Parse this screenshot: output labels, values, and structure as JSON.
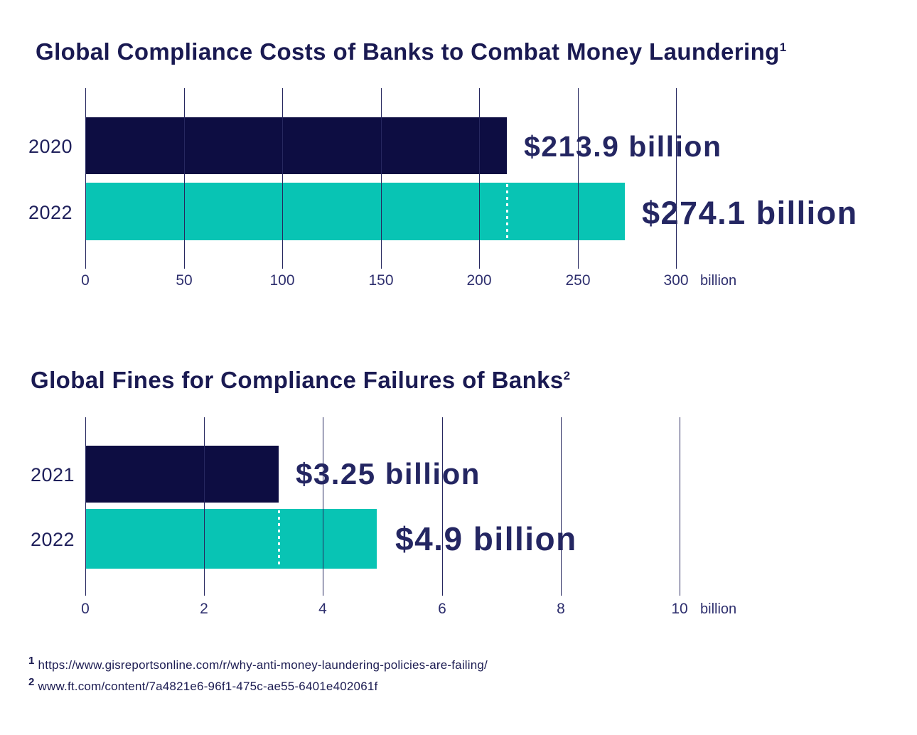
{
  "chart_data": [
    {
      "type": "bar",
      "orientation": "horizontal",
      "title": "Global Compliance Costs of Banks to Combat Money Laundering",
      "footnote_marker": "1",
      "categories": [
        "2020",
        "2022"
      ],
      "values": [
        213.9,
        274.1
      ],
      "value_labels": [
        "$213.9 billion",
        "$274.1 billion"
      ],
      "bar_colors": [
        "#0d0d42",
        "#08c4b4"
      ],
      "x_ticks": [
        0,
        50,
        100,
        150,
        200,
        250,
        300
      ],
      "x_tick_labels": [
        "0",
        "50",
        "100",
        "150",
        "200",
        "250",
        "300"
      ],
      "x_unit": "billion",
      "xlim": [
        0,
        300
      ],
      "reference_line_value": 213.9,
      "reference_line_style": "white-dotted",
      "grid": true,
      "legend": "none"
    },
    {
      "type": "bar",
      "orientation": "horizontal",
      "title": "Global Fines for Compliance Failures of Banks",
      "footnote_marker": "2",
      "categories": [
        "2021",
        "2022"
      ],
      "values": [
        3.25,
        4.9
      ],
      "value_labels": [
        "$3.25 billion",
        "$4.9 billion"
      ],
      "bar_colors": [
        "#0d0d42",
        "#08c4b4"
      ],
      "x_ticks": [
        0,
        2,
        4,
        6,
        8,
        10
      ],
      "x_tick_labels": [
        "0",
        "2",
        "4",
        "6",
        "8",
        "10"
      ],
      "x_unit": "billion",
      "xlim": [
        0,
        10
      ],
      "reference_line_value": 3.25,
      "reference_line_style": "white-dotted",
      "grid": true,
      "legend": "none"
    }
  ],
  "footnotes": [
    {
      "marker": "1",
      "text": "https://www.gisreportsonline.com/r/why-anti-money-laundering-policies-are-failing/"
    },
    {
      "marker": "2",
      "text": "www.ft.com/content/7a4821e6-96f1-475c-ae55-6401e402061f"
    }
  ],
  "colors": {
    "background": "#ffffff",
    "bar_navy": "#0d0d42",
    "bar_teal": "#08c4b4",
    "text_navy": "#242662",
    "gridline": "#26275f",
    "reference_line": "#ffffff"
  }
}
